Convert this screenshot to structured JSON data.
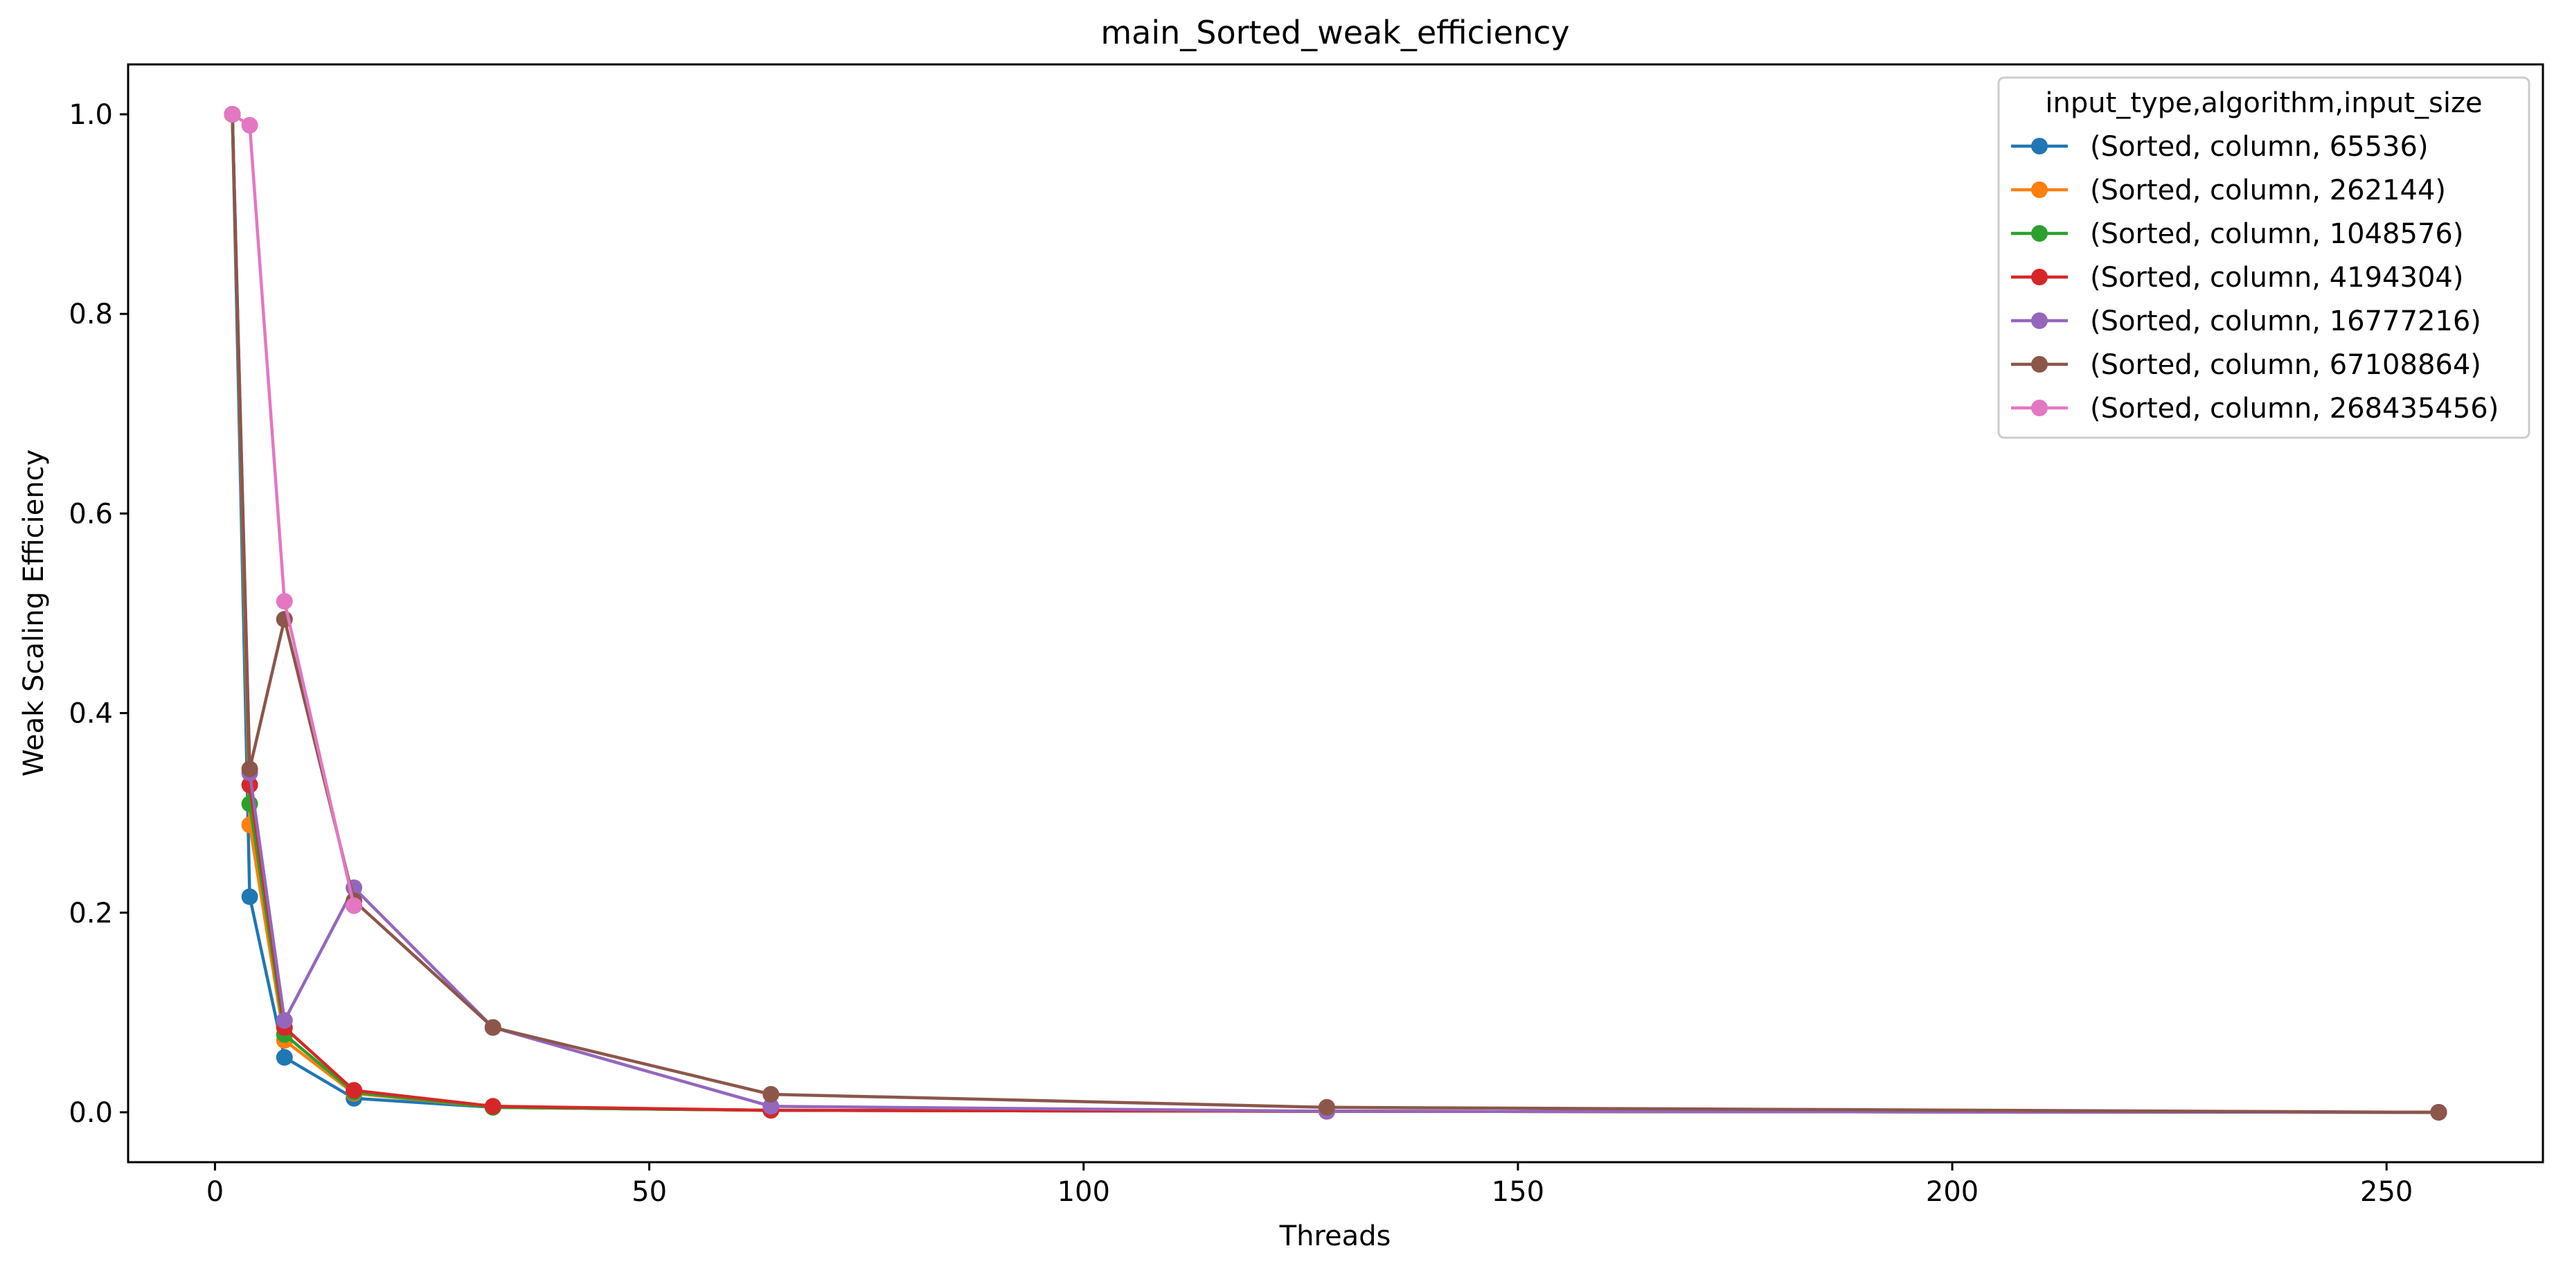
{
  "chart_data": {
    "type": "line",
    "title": "main_Sorted_weak_efficiency",
    "xlabel": "Threads",
    "ylabel": "Weak Scaling Efficiency",
    "xlim": [
      -10,
      268
    ],
    "ylim": [
      -0.05,
      1.05
    ],
    "xticks": [
      {
        "value": 0,
        "label": "0"
      },
      {
        "value": 50,
        "label": "50"
      },
      {
        "value": 100,
        "label": "100"
      },
      {
        "value": 150,
        "label": "150"
      },
      {
        "value": 200,
        "label": "200"
      },
      {
        "value": 250,
        "label": "250"
      }
    ],
    "yticks": [
      {
        "value": 0.0,
        "label": "0.0"
      },
      {
        "value": 0.2,
        "label": "0.2"
      },
      {
        "value": 0.4,
        "label": "0.4"
      },
      {
        "value": 0.6,
        "label": "0.6"
      },
      {
        "value": 0.8,
        "label": "0.8"
      },
      {
        "value": 1.0,
        "label": "1.0"
      }
    ],
    "grid": false,
    "legend": {
      "title": "input_type,algorithm,input_size",
      "placement": "top-right"
    },
    "series": [
      {
        "name": "(Sorted, column, 65536)",
        "color": "#1f77b4",
        "points": [
          [
            2,
            1.0
          ],
          [
            4,
            0.216
          ],
          [
            8,
            0.055
          ],
          [
            16,
            0.014
          ],
          [
            32,
            0.005
          ],
          [
            64,
            0.002
          ],
          [
            128,
            0.001
          ],
          [
            256,
            0.0
          ]
        ]
      },
      {
        "name": "(Sorted, column, 262144)",
        "color": "#ff7f0e",
        "points": [
          [
            2,
            1.0
          ],
          [
            4,
            0.288
          ],
          [
            8,
            0.072
          ],
          [
            16,
            0.019
          ],
          [
            32,
            0.005
          ],
          [
            64,
            0.002
          ],
          [
            128,
            0.001
          ],
          [
            256,
            0.0
          ]
        ]
      },
      {
        "name": "(Sorted, column, 1048576)",
        "color": "#2ca02c",
        "points": [
          [
            2,
            1.0
          ],
          [
            4,
            0.309
          ],
          [
            8,
            0.078
          ],
          [
            16,
            0.02
          ],
          [
            32,
            0.005
          ],
          [
            64,
            0.002
          ],
          [
            128,
            0.001
          ],
          [
            256,
            0.0
          ]
        ]
      },
      {
        "name": "(Sorted, column, 4194304)",
        "color": "#d62728",
        "points": [
          [
            2,
            1.0
          ],
          [
            4,
            0.328
          ],
          [
            8,
            0.085
          ],
          [
            16,
            0.022
          ],
          [
            32,
            0.006
          ],
          [
            64,
            0.002
          ],
          [
            128,
            0.001
          ],
          [
            256,
            0.0
          ]
        ]
      },
      {
        "name": "(Sorted, column, 16777216)",
        "color": "#9467bd",
        "points": [
          [
            2,
            1.0
          ],
          [
            4,
            0.34
          ],
          [
            8,
            0.092
          ],
          [
            16,
            0.225
          ],
          [
            32,
            0.085
          ],
          [
            64,
            0.006
          ],
          [
            128,
            0.001
          ],
          [
            256,
            0.0
          ]
        ]
      },
      {
        "name": "(Sorted, column, 67108864)",
        "color": "#8c564b",
        "points": [
          [
            2,
            1.0
          ],
          [
            4,
            0.344
          ],
          [
            8,
            0.494
          ],
          [
            16,
            0.212
          ],
          [
            32,
            0.085
          ],
          [
            64,
            0.018
          ],
          [
            128,
            0.005
          ],
          [
            256,
            0.0
          ]
        ]
      },
      {
        "name": "(Sorted, column, 268435456)",
        "color": "#e377c2",
        "points": [
          [
            2,
            1.0
          ],
          [
            4,
            0.989
          ],
          [
            8,
            0.512
          ],
          [
            16,
            0.207
          ]
        ]
      }
    ]
  }
}
